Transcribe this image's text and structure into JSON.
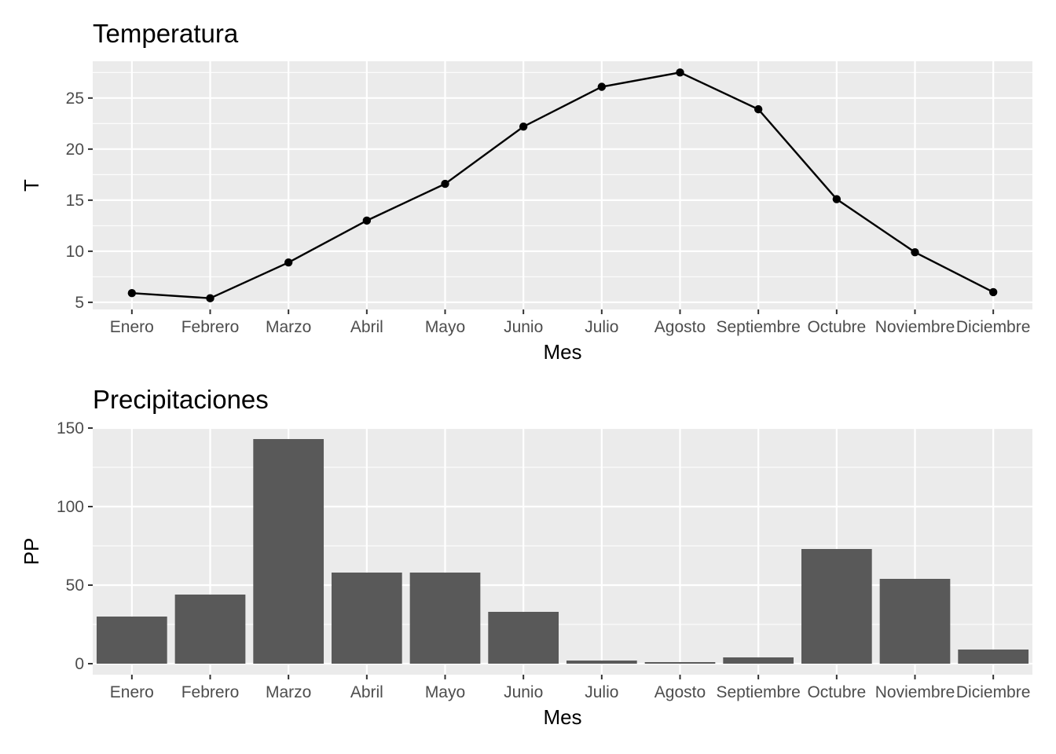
{
  "chart_data": [
    {
      "type": "line",
      "title": "Temperatura",
      "xlabel": "Mes",
      "ylabel": "T",
      "categories": [
        "Enero",
        "Febrero",
        "Marzo",
        "Abril",
        "Mayo",
        "Junio",
        "Julio",
        "Agosto",
        "Septiembre",
        "Octubre",
        "Noviembre",
        "Diciembre"
      ],
      "values": [
        5.9,
        5.4,
        8.9,
        13.0,
        16.6,
        22.2,
        26.1,
        27.5,
        23.9,
        15.1,
        9.9,
        6.0
      ],
      "yticks": [
        5,
        10,
        15,
        20,
        25
      ],
      "ylim": [
        4.3,
        28.6
      ],
      "grid": true,
      "line_color": "#000000",
      "panel_color": "#ebebeb"
    },
    {
      "type": "bar",
      "title": "Precipitaciones",
      "xlabel": "Mes",
      "ylabel": "PP",
      "categories": [
        "Enero",
        "Febrero",
        "Marzo",
        "Abril",
        "Mayo",
        "Junio",
        "Julio",
        "Agosto",
        "Septiembre",
        "Octubre",
        "Noviembre",
        "Diciembre"
      ],
      "values": [
        30,
        44,
        143,
        58,
        58,
        33,
        2,
        1,
        4,
        73,
        54,
        9
      ],
      "yticks": [
        0,
        50,
        100,
        150
      ],
      "ylim": [
        -7,
        150
      ],
      "grid": true,
      "bar_color": "#595959",
      "panel_color": "#ebebeb"
    }
  ]
}
